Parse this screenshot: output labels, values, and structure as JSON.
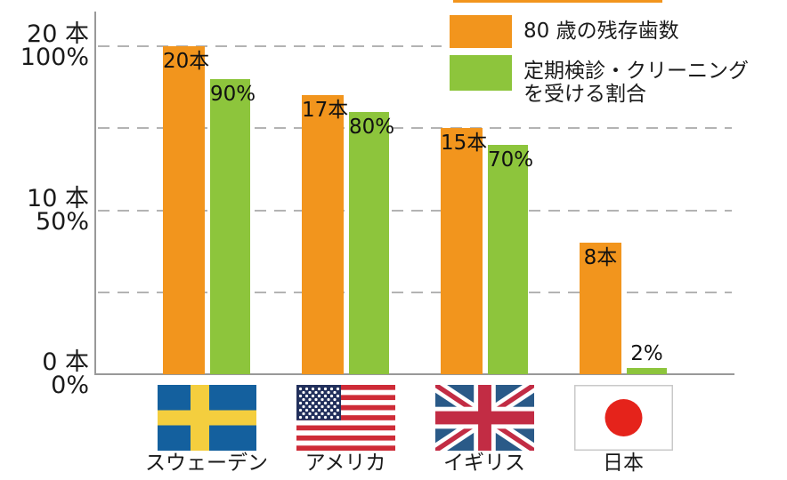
{
  "colors": {
    "teeth_bar": "#F2951D",
    "checkup_bar": "#8DC53C",
    "axis": "#999999",
    "gridline": "#B3B3B3",
    "text": "#1A1A1A"
  },
  "legend": {
    "items": [
      {
        "id": "teeth",
        "color": "#F2951D",
        "lines": [
          "80 歳の残存歯数"
        ]
      },
      {
        "id": "checkup",
        "color": "#8DC53C",
        "lines": [
          "定期検診・クリーニング",
          "を受ける割合"
        ]
      }
    ]
  },
  "chart_data": {
    "type": "bar",
    "title": "",
    "categories": [
      "スウェーデン",
      "アメリカ",
      "イギリス",
      "日本"
    ],
    "flags": [
      "sweden",
      "usa",
      "uk",
      "japan"
    ],
    "series": [
      {
        "name": "80 歳の残存歯数",
        "unit": "本",
        "axis_max": 20,
        "color": "#F2951D",
        "values": [
          20,
          17,
          15,
          8
        ],
        "point_labels": [
          "20本",
          "17本",
          "15本",
          "8本"
        ]
      },
      {
        "name": "定期検診・クリーニングを受ける割合",
        "unit": "%",
        "axis_max": 100,
        "color": "#8DC53C",
        "values": [
          90,
          80,
          70,
          2
        ],
        "point_labels": [
          "90%",
          "80%",
          "70%",
          "2%"
        ]
      }
    ],
    "y_axis": {
      "dual_scale": true,
      "ticks": [
        {
          "teeth": "20 本",
          "percent_label": "100%",
          "percent": 100
        },
        {
          "teeth": "10 本",
          "percent_label": "50%",
          "percent": 50
        },
        {
          "teeth": "0 本",
          "percent_label": "0%",
          "percent": 0
        }
      ],
      "range_teeth": [
        0,
        20
      ],
      "range_percent": [
        0,
        100
      ]
    },
    "gridlines_percent": [
      100,
      75,
      50,
      25
    ],
    "grid": "dashed",
    "legend_position": "top-right"
  }
}
